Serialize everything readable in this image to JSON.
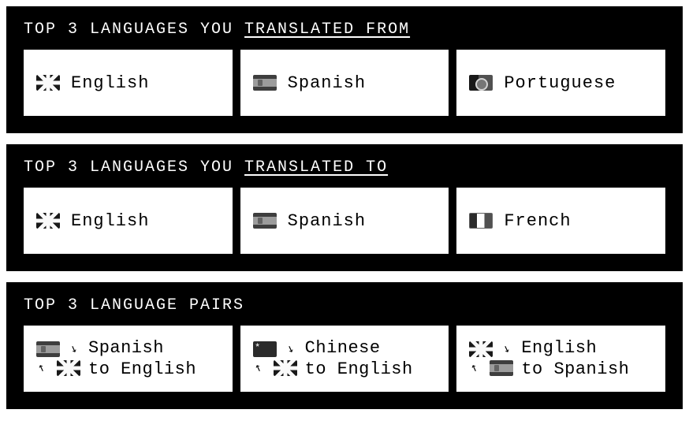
{
  "colors": {
    "panel_bg": "#000000",
    "card_bg": "#ffffff",
    "text_light": "#ffffff",
    "text_dark": "#000000"
  },
  "panels": {
    "from": {
      "title_prefix": "TOP 3 LANGUAGES YOU ",
      "title_underlined": "TRANSLATED FROM",
      "items": [
        {
          "flag": "uk",
          "name": "English"
        },
        {
          "flag": "es",
          "name": "Spanish"
        },
        {
          "flag": "pt",
          "name": "Portuguese"
        }
      ]
    },
    "to": {
      "title_prefix": "TOP 3 LANGUAGES YOU ",
      "title_underlined": "TRANSLATED TO",
      "items": [
        {
          "flag": "uk",
          "name": "English"
        },
        {
          "flag": "es",
          "name": "Spanish"
        },
        {
          "flag": "fr",
          "name": "French"
        }
      ]
    },
    "pairs": {
      "title": "TOP 3 LANGUAGE PAIRS",
      "items": [
        {
          "src_flag": "es",
          "dst_flag": "uk",
          "line1": "Spanish",
          "line2": "to English"
        },
        {
          "src_flag": "cn",
          "dst_flag": "uk",
          "line1": "Chinese",
          "line2": "to English"
        },
        {
          "src_flag": "uk",
          "dst_flag": "es",
          "line1": "English",
          "line2": "to Spanish"
        }
      ]
    }
  }
}
